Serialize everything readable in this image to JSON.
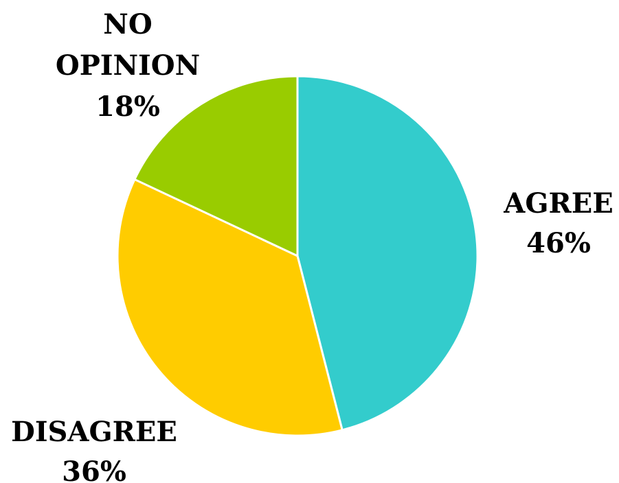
{
  "chart_data": {
    "type": "pie",
    "title": "",
    "start_angle_deg": 0,
    "direction": "clockwise",
    "slices": [
      {
        "label": "AGREE",
        "label_lines": [
          "AGREE"
        ],
        "value": 46,
        "value_label": "46%",
        "color": "#33CCCC"
      },
      {
        "label": "DISAGREE",
        "label_lines": [
          "DISAGREE"
        ],
        "value": 36,
        "value_label": "36%",
        "color": "#FFCC00"
      },
      {
        "label": "NO OPINION",
        "label_lines": [
          "NO",
          "OPINION"
        ],
        "value": 18,
        "value_label": "18%",
        "color": "#99CC00"
      }
    ],
    "legend": "none",
    "grid": false
  }
}
